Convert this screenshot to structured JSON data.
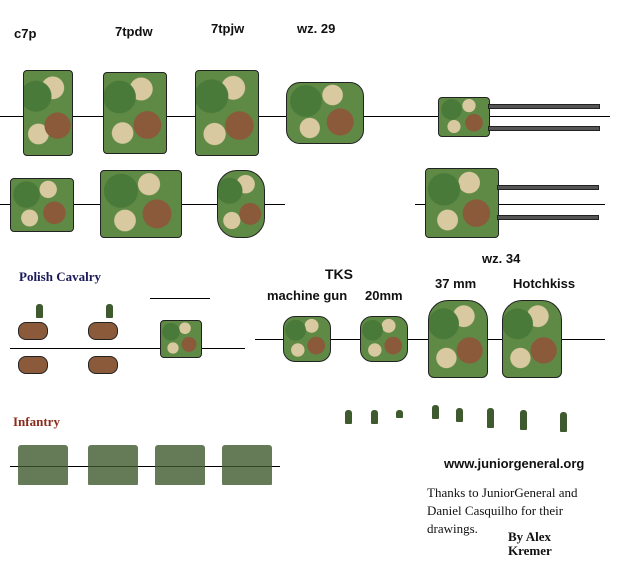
{
  "labels": {
    "c7p": "c7p",
    "7tpdw": "7tpdw",
    "7tpjw": "7tpjw",
    "wz29": "wz. 29",
    "wz34": "wz. 34",
    "polish_cavalry": "Polish Cavalry",
    "tks": "TKS",
    "machine_gun": "machine gun",
    "mm20": "20mm",
    "mm37": "37 mm",
    "hotchkiss": "Hotchkiss",
    "infantry": "Infantry"
  },
  "footer": {
    "website": "www.juniorgeneral.org",
    "thanks": "Thanks to JuniorGeneral and Daniel Casquilho for their drawings.",
    "author": "By Alex Kremer"
  },
  "colors": {
    "cavalry_label": "#1a1a5a",
    "infantry_label": "#8a2a1a",
    "camo_green": "#5f8a45",
    "camo_brown": "#8a5a3a",
    "camo_tan": "#d9c9a0"
  }
}
